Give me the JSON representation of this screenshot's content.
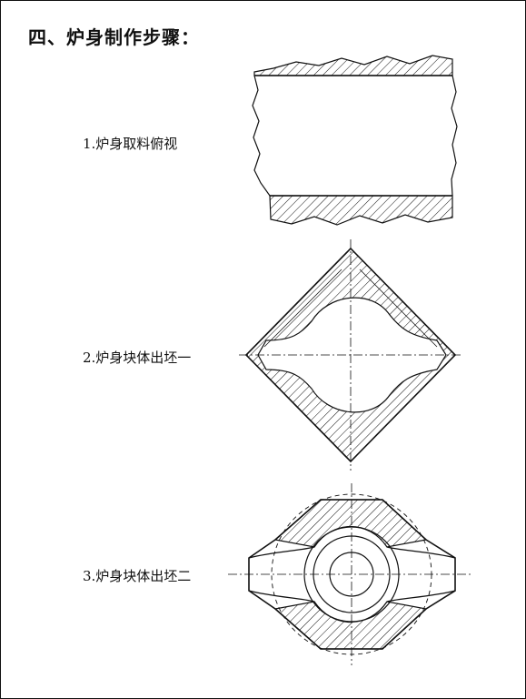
{
  "heading": "四、炉身制作步骤：",
  "steps": [
    {
      "label": "1.炉身取料俯视",
      "figure": "stock-plate-top-view"
    },
    {
      "label": "2.炉身块体出坯一",
      "figure": "diamond-blank-first-stage"
    },
    {
      "label": "3.炉身块体出坯二",
      "figure": "octagonal-blank-second-stage"
    }
  ],
  "colors": {
    "line": "#111111",
    "background": "#ffffff"
  }
}
